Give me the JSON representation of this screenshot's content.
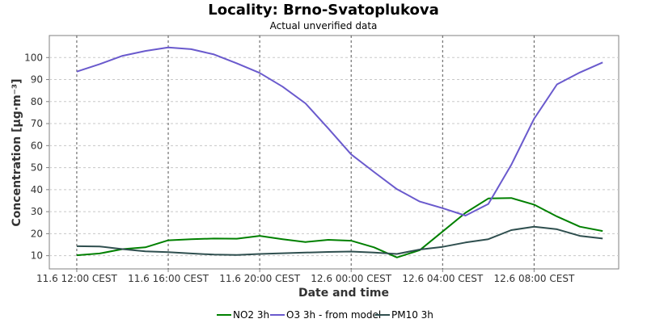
{
  "chart_data": {
    "type": "line",
    "title": "Locality: Brno-Svatoplukova",
    "subtitle": "Actual unverified data",
    "xlabel": "Date and time",
    "ylabel": "Concentration [µg·m⁻³]",
    "ylim": [
      4,
      110
    ],
    "yticks": [
      10,
      20,
      30,
      40,
      50,
      60,
      70,
      80,
      90,
      100
    ],
    "x_hours": [
      0,
      1,
      2,
      3,
      4,
      5,
      6,
      7,
      8,
      9,
      10,
      11,
      12,
      13,
      14,
      15,
      16,
      17,
      18,
      19,
      20,
      21,
      22,
      23
    ],
    "xticks": [
      {
        "hour": 0,
        "label": "11.6 12:00 CEST"
      },
      {
        "hour": 4,
        "label": "11.6 16:00 CEST"
      },
      {
        "hour": 8,
        "label": "11.6 20:00 CEST"
      },
      {
        "hour": 12,
        "label": "12.6 00:00 CEST"
      },
      {
        "hour": 16,
        "label": "12.6 04:00 CEST"
      },
      {
        "hour": 20,
        "label": "12.6 08:00 CEST"
      }
    ],
    "xlim": [
      -1.2,
      23.7
    ],
    "grid": true,
    "legend_position": "bottom",
    "series": [
      {
        "name": "NO2 3h",
        "color": "#008000",
        "values": [
          10.2,
          11,
          13,
          13.8,
          17,
          17.5,
          17.8,
          17.7,
          19,
          17.5,
          16.2,
          17.2,
          16.8,
          13.8,
          9.2,
          12.5,
          21,
          29.5,
          36,
          36.2,
          33.2,
          27.8,
          23.2,
          21.2
        ]
      },
      {
        "name": "O3 3h - from model",
        "color": "#6a5acd",
        "values": [
          93.6,
          97,
          100.8,
          103,
          104.6,
          103.8,
          101.4,
          97.4,
          93,
          86.8,
          79.2,
          67.8,
          56,
          48,
          40.2,
          34.6,
          31.6,
          28.2,
          33.5,
          51.2,
          72.2,
          87.8,
          93.2,
          97.8
        ]
      },
      {
        "name": "PM10 3h",
        "color": "#2f4f4f",
        "values": [
          14.3,
          14.2,
          13,
          12,
          11.6,
          11,
          10.5,
          10.3,
          10.8,
          11.1,
          11.4,
          11.7,
          11.9,
          11.4,
          10.8,
          12.8,
          14,
          16,
          17.5,
          21.6,
          23.2,
          22,
          19,
          17.8
        ]
      }
    ]
  }
}
